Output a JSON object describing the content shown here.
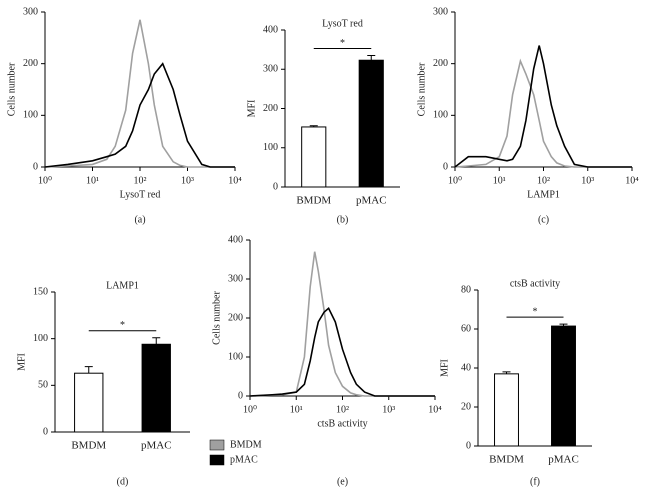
{
  "chart_data": [
    {
      "type": "histogram-line",
      "panel_label": "(a)",
      "xlabel": "LysoT red",
      "ylabel": "Cells number",
      "xscale": "log",
      "xlim": [
        1,
        10000
      ],
      "xticks": [
        {
          "value": 1,
          "label": "10⁰"
        },
        {
          "value": 10,
          "label": "10¹"
        },
        {
          "value": 100,
          "label": "10²"
        },
        {
          "value": 1000,
          "label": "10³"
        },
        {
          "value": 10000,
          "label": "10⁴"
        }
      ],
      "ylim": [
        0,
        300
      ],
      "yticks": [
        0,
        100,
        200,
        300
      ],
      "x": [
        1,
        3,
        10,
        20,
        30,
        50,
        70,
        100,
        150,
        200,
        300,
        500,
        700,
        1000,
        2000,
        3000,
        10000
      ],
      "series": [
        {
          "color": "#a0a0a0",
          "values": [
            0,
            2,
            5,
            15,
            40,
            110,
            220,
            285,
            200,
            120,
            40,
            10,
            3,
            0,
            0,
            0,
            0
          ]
        },
        {
          "color": "#000000",
          "values": [
            0,
            5,
            12,
            20,
            25,
            40,
            70,
            120,
            150,
            180,
            200,
            150,
            100,
            50,
            5,
            0,
            0
          ]
        }
      ]
    },
    {
      "type": "bar",
      "panel_label": "(b)",
      "title": "LysoT red",
      "ylabel": "MFI",
      "categories": [
        "BMDM",
        "pMAC"
      ],
      "values": [
        153,
        323
      ],
      "errors": [
        3,
        12
      ],
      "colors": [
        "#ffffff",
        "#000000"
      ],
      "annotation": "*",
      "ylim": [
        0,
        400
      ],
      "yticks": [
        0,
        100,
        200,
        300,
        400
      ]
    },
    {
      "type": "histogram-line",
      "panel_label": "(c)",
      "xlabel": "LAMP1",
      "ylabel": "Cells number",
      "xscale": "log",
      "xlim": [
        1,
        10000
      ],
      "xticks": [
        {
          "value": 1,
          "label": "10⁰"
        },
        {
          "value": 10,
          "label": "10¹"
        },
        {
          "value": 100,
          "label": "10²"
        },
        {
          "value": 1000,
          "label": "10³"
        },
        {
          "value": 10000,
          "label": "10⁴"
        }
      ],
      "ylim": [
        0,
        300
      ],
      "yticks": [
        0,
        100,
        200,
        300
      ],
      "x": [
        1,
        2,
        5,
        10,
        15,
        20,
        30,
        40,
        60,
        80,
        100,
        150,
        200,
        300,
        500,
        1000,
        10000
      ],
      "series": [
        {
          "color": "#a0a0a0",
          "values": [
            0,
            2,
            5,
            20,
            60,
            140,
            205,
            180,
            140,
            90,
            50,
            20,
            8,
            2,
            0,
            0,
            0
          ]
        },
        {
          "color": "#000000",
          "values": [
            0,
            20,
            20,
            15,
            12,
            15,
            40,
            90,
            190,
            235,
            200,
            120,
            80,
            40,
            5,
            0,
            0
          ]
        }
      ]
    },
    {
      "type": "bar",
      "panel_label": "(d)",
      "title": "LAMP1",
      "ylabel": "MFI",
      "categories": [
        "BMDM",
        "pMAC"
      ],
      "values": [
        63,
        94
      ],
      "errors": [
        7,
        7
      ],
      "colors": [
        "#ffffff",
        "#000000"
      ],
      "annotation": "*",
      "ylim": [
        0,
        150
      ],
      "yticks": [
        0,
        50,
        100,
        150
      ]
    },
    {
      "type": "histogram-line",
      "panel_label": "(e)",
      "xlabel": "ctsB activity",
      "ylabel": "Cells number",
      "xscale": "log",
      "legend": "bottom-left",
      "xlim": [
        1,
        10000
      ],
      "xticks": [
        {
          "value": 1,
          "label": "10⁰"
        },
        {
          "value": 10,
          "label": "10¹"
        },
        {
          "value": 100,
          "label": "10²"
        },
        {
          "value": 1000,
          "label": "10³"
        },
        {
          "value": 10000,
          "label": "10⁴"
        }
      ],
      "ylim": [
        0,
        400
      ],
      "yticks": [
        0,
        100,
        200,
        300,
        400
      ],
      "x": [
        1,
        3,
        5,
        10,
        15,
        20,
        25,
        30,
        40,
        50,
        70,
        100,
        150,
        200,
        300,
        500,
        10000
      ],
      "series": [
        {
          "name": "BMDM",
          "color": "#a0a0a0",
          "values": [
            0,
            2,
            3,
            10,
            100,
            280,
            370,
            320,
            220,
            130,
            60,
            25,
            8,
            3,
            0,
            0,
            0
          ]
        },
        {
          "name": "pMAC",
          "color": "#000000",
          "values": [
            0,
            3,
            5,
            10,
            30,
            90,
            150,
            190,
            215,
            225,
            190,
            120,
            60,
            30,
            10,
            0,
            0
          ]
        }
      ]
    },
    {
      "type": "bar",
      "panel_label": "(f)",
      "title": "ctsB activity",
      "ylabel": "MFI",
      "categories": [
        "BMDM",
        "pMAC"
      ],
      "values": [
        37,
        61.5
      ],
      "errors": [
        1,
        1
      ],
      "colors": [
        "#ffffff",
        "#000000"
      ],
      "annotation": "*",
      "ylim": [
        0,
        80
      ],
      "yticks": [
        0,
        20,
        40,
        60,
        80
      ]
    }
  ]
}
